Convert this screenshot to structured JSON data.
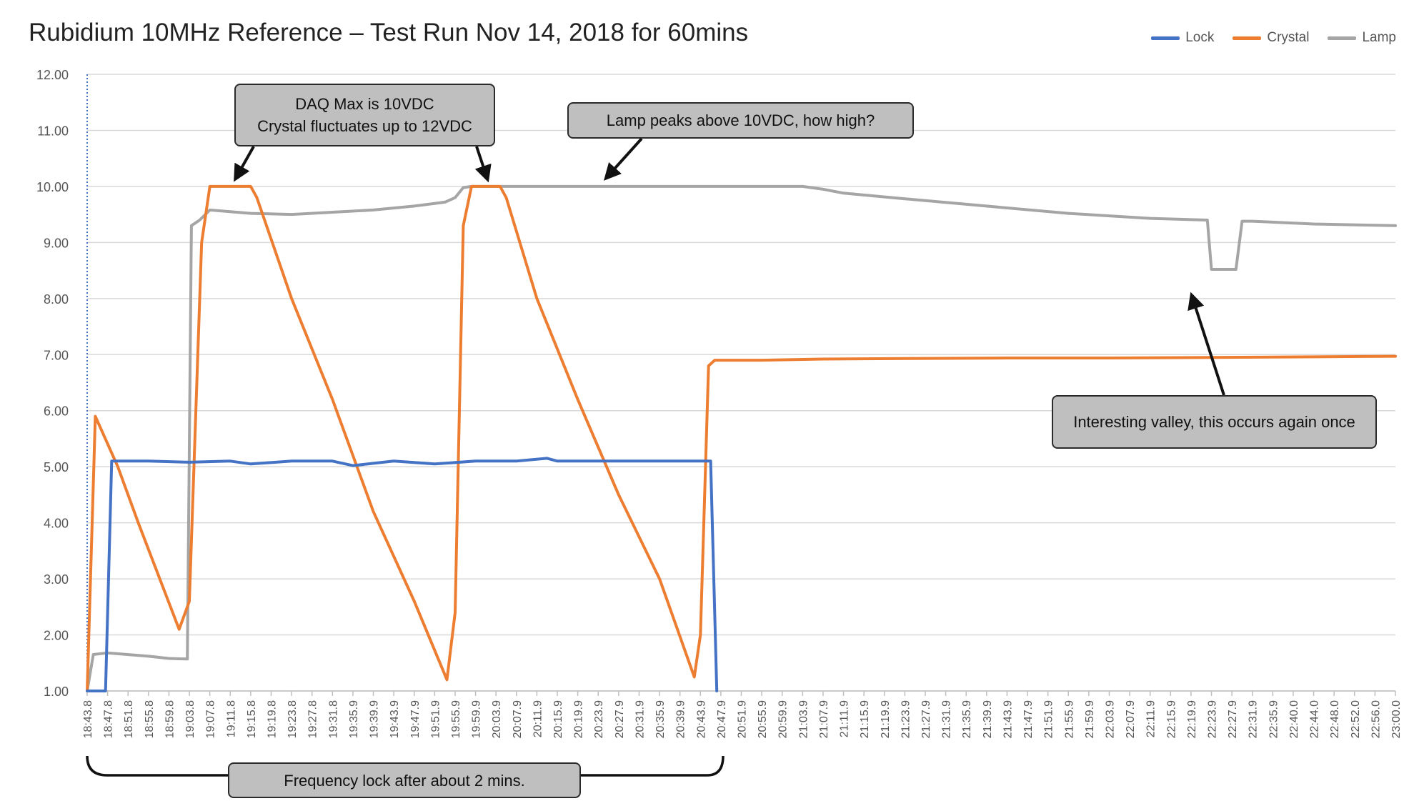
{
  "colors": {
    "lock": "#4472C4",
    "crystal": "#ED7D31",
    "lamp": "#A5A5A5",
    "gridline": "#D9D9D9",
    "callout_fill": "#BFBFBF"
  },
  "chart_data": {
    "type": "line",
    "title": "Rubidium 10MHz Reference – Test Run Nov 14, 2018 for 60mins",
    "xlabel": "",
    "ylabel": "",
    "ylim": [
      1.0,
      12.0
    ],
    "grid": true,
    "legend_position": "top-right",
    "y_ticks": [
      "1.00",
      "2.00",
      "3.00",
      "4.00",
      "5.00",
      "6.00",
      "7.00",
      "8.00",
      "9.00",
      "10.00",
      "11.00",
      "12.00"
    ],
    "x_ticks": [
      "18:43.8",
      "18:47.8",
      "18:51.8",
      "18:55.8",
      "18:59.8",
      "19:03.8",
      "19:07.8",
      "19:11.8",
      "19:15.8",
      "19:19.8",
      "19:23.8",
      "19:27.8",
      "19:31.8",
      "19:35.9",
      "19:39.9",
      "19:43.9",
      "19:47.9",
      "19:51.9",
      "19:55.9",
      "19:59.9",
      "20:03.9",
      "20:07.9",
      "20:11.9",
      "20:15.9",
      "20:19.9",
      "20:23.9",
      "20:27.9",
      "20:31.9",
      "20:35.9",
      "20:39.9",
      "20:43.9",
      "20:47.9",
      "20:51.9",
      "20:55.9",
      "20:59.9",
      "21:03.9",
      "21:07.9",
      "21:11.9",
      "21:15.9",
      "21:19.9",
      "21:23.9",
      "21:27.9",
      "21:31.9",
      "21:35.9",
      "21:39.9",
      "21:43.9",
      "21:47.9",
      "21:51.9",
      "21:55.9",
      "21:59.9",
      "22:03.9",
      "22:07.9",
      "22:11.9",
      "22:15.9",
      "22:19.9",
      "22:23.9",
      "22:27.9",
      "22:31.9",
      "22:35.9",
      "22:40.0",
      "22:44.0",
      "22:48.0",
      "22:52.0",
      "22:56.0",
      "23:00.0"
    ],
    "series": [
      {
        "name": "Lock",
        "points": [
          [
            0.0,
            1.0
          ],
          [
            0.9,
            1.0
          ],
          [
            1.2,
            5.1
          ],
          [
            3,
            5.1
          ],
          [
            5,
            5.08
          ],
          [
            7,
            5.1
          ],
          [
            8,
            5.05
          ],
          [
            10,
            5.1
          ],
          [
            12,
            5.1
          ],
          [
            13,
            5.02
          ],
          [
            15,
            5.1
          ],
          [
            17,
            5.05
          ],
          [
            19,
            5.1
          ],
          [
            21,
            5.1
          ],
          [
            22.5,
            5.15
          ],
          [
            23,
            5.1
          ],
          [
            25,
            5.1
          ],
          [
            27,
            5.1
          ],
          [
            29,
            5.1
          ],
          [
            30.5,
            5.1
          ],
          [
            30.8,
            1.0
          ]
        ]
      },
      {
        "name": "Crystal",
        "points": [
          [
            0.0,
            1.0
          ],
          [
            0.4,
            5.9
          ],
          [
            1.5,
            5.0
          ],
          [
            2.5,
            4.0
          ],
          [
            4.5,
            2.1
          ],
          [
            5.0,
            2.6
          ],
          [
            5.6,
            9.0
          ],
          [
            6.0,
            10.0
          ],
          [
            8.0,
            10.0
          ],
          [
            8.3,
            9.8
          ],
          [
            10,
            8.0
          ],
          [
            12,
            6.2
          ],
          [
            14,
            4.2
          ],
          [
            16,
            2.6
          ],
          [
            17.6,
            1.2
          ],
          [
            18,
            2.4
          ],
          [
            18.4,
            9.3
          ],
          [
            18.8,
            10.0
          ],
          [
            20.2,
            10.0
          ],
          [
            20.5,
            9.8
          ],
          [
            22,
            8.0
          ],
          [
            24,
            6.2
          ],
          [
            26,
            4.5
          ],
          [
            28,
            3.0
          ],
          [
            29.7,
            1.25
          ],
          [
            30.0,
            2.0
          ],
          [
            30.4,
            6.8
          ],
          [
            30.7,
            6.9
          ],
          [
            33,
            6.9
          ],
          [
            36,
            6.92
          ],
          [
            40,
            6.93
          ],
          [
            45,
            6.94
          ],
          [
            50,
            6.94
          ],
          [
            55,
            6.95
          ],
          [
            60,
            6.96
          ],
          [
            64,
            6.97
          ]
        ]
      },
      {
        "name": "Lamp",
        "points": [
          [
            0.0,
            1.0
          ],
          [
            0.3,
            1.65
          ],
          [
            1.0,
            1.68
          ],
          [
            3.0,
            1.62
          ],
          [
            4.0,
            1.58
          ],
          [
            4.9,
            1.57
          ],
          [
            5.1,
            9.3
          ],
          [
            5.5,
            9.4
          ],
          [
            6.0,
            9.58
          ],
          [
            7,
            9.55
          ],
          [
            8,
            9.52
          ],
          [
            10,
            9.5
          ],
          [
            12,
            9.54
          ],
          [
            14,
            9.58
          ],
          [
            16,
            9.65
          ],
          [
            17.5,
            9.72
          ],
          [
            18.0,
            9.8
          ],
          [
            18.4,
            9.98
          ],
          [
            18.8,
            10.0
          ],
          [
            25,
            10.0
          ],
          [
            30,
            10.0
          ],
          [
            35,
            10.0
          ],
          [
            36,
            9.95
          ],
          [
            37,
            9.88
          ],
          [
            40,
            9.78
          ],
          [
            44,
            9.65
          ],
          [
            48,
            9.52
          ],
          [
            52,
            9.43
          ],
          [
            54.8,
            9.4
          ],
          [
            55.0,
            8.52
          ],
          [
            56.2,
            8.52
          ],
          [
            56.5,
            9.38
          ],
          [
            57,
            9.38
          ],
          [
            60,
            9.33
          ],
          [
            64,
            9.3
          ]
        ]
      }
    ],
    "annotations": [
      {
        "lines": [
          "DAQ Max is 10VDC",
          "Crystal fluctuates up to 12VDC"
        ]
      },
      {
        "lines": [
          "Lamp peaks above 10VDC, how high?"
        ]
      },
      {
        "lines": [
          "Interesting valley, this occurs again once"
        ]
      },
      {
        "lines": [
          "Frequency lock after about 2 mins."
        ]
      }
    ]
  }
}
